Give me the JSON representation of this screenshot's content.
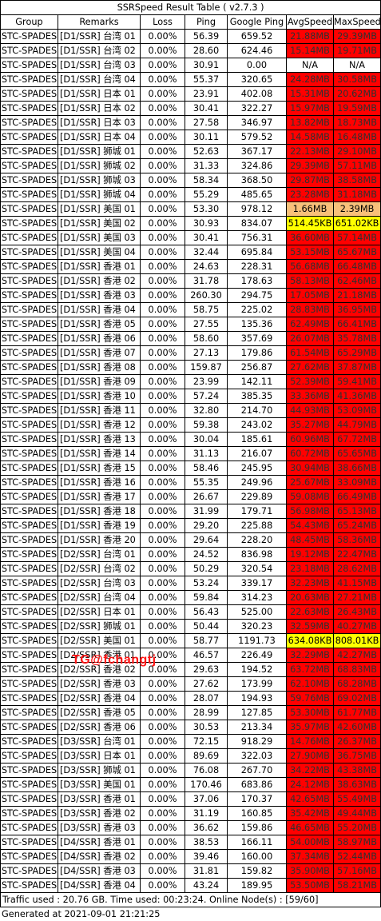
{
  "title": "SSRSpeed Result Table ( v2.7.3 )",
  "headers": [
    "Group",
    "Remarks",
    "Loss",
    "Ping",
    "Google Ping",
    "AvgSpeed",
    "MaxSpeed"
  ],
  "colors": {
    "red": "#ff0000",
    "orange": "#f8c07a",
    "yellow": "#ffff00",
    "watermark": "#ff1414"
  },
  "rows": [
    [
      "STC-SPADES",
      "[D1/SSR] 台湾 01",
      "0.00%",
      "56.39",
      "659.52",
      "21.88MB",
      "29.39MB",
      "red",
      "red"
    ],
    [
      "STC-SPADES",
      "[D1/SSR] 台湾 02",
      "0.00%",
      "28.60",
      "624.46",
      "15.14MB",
      "19.71MB",
      "red",
      "red"
    ],
    [
      "STC-SPADES",
      "[D1/SSR] 台湾 03",
      "0.00%",
      "30.91",
      "0.00",
      "N/A",
      "N/A",
      "white",
      "white"
    ],
    [
      "STC-SPADES",
      "[D1/SSR] 台湾 04",
      "0.00%",
      "55.37",
      "320.65",
      "24.28MB",
      "30.58MB",
      "red",
      "red"
    ],
    [
      "STC-SPADES",
      "[D1/SSR] 日本 01",
      "0.00%",
      "23.91",
      "402.08",
      "15.31MB",
      "20.62MB",
      "red",
      "red"
    ],
    [
      "STC-SPADES",
      "[D1/SSR] 日本 02",
      "0.00%",
      "30.41",
      "322.27",
      "15.97MB",
      "19.59MB",
      "red",
      "red"
    ],
    [
      "STC-SPADES",
      "[D1/SSR] 日本 03",
      "0.00%",
      "27.58",
      "346.97",
      "13.82MB",
      "18.73MB",
      "red",
      "red"
    ],
    [
      "STC-SPADES",
      "[D1/SSR] 日本 04",
      "0.00%",
      "30.11",
      "579.52",
      "14.58MB",
      "16.48MB",
      "red",
      "red"
    ],
    [
      "STC-SPADES",
      "[D1/SSR] 狮城 01",
      "0.00%",
      "52.63",
      "367.17",
      "22.13MB",
      "29.10MB",
      "red",
      "red"
    ],
    [
      "STC-SPADES",
      "[D1/SSR] 狮城 02",
      "0.00%",
      "31.33",
      "324.86",
      "29.39MB",
      "57.11MB",
      "red",
      "red"
    ],
    [
      "STC-SPADES",
      "[D1/SSR] 狮城 03",
      "0.00%",
      "58.34",
      "368.50",
      "29.87MB",
      "38.58MB",
      "red",
      "red"
    ],
    [
      "STC-SPADES",
      "[D1/SSR] 狮城 04",
      "0.00%",
      "55.29",
      "485.65",
      "23.28MB",
      "31.18MB",
      "red",
      "red"
    ],
    [
      "STC-SPADES",
      "[D1/SSR] 美国 01",
      "0.00%",
      "53.30",
      "978.12",
      "1.66MB",
      "2.39MB",
      "orange",
      "orange"
    ],
    [
      "STC-SPADES",
      "[D1/SSR] 美国 02",
      "0.00%",
      "30.93",
      "834.07",
      "514.45KB",
      "651.02KB",
      "yellow",
      "yellow"
    ],
    [
      "STC-SPADES",
      "[D1/SSR] 美国 03",
      "0.00%",
      "30.41",
      "756.31",
      "36.60MB",
      "57.14MB",
      "red",
      "red"
    ],
    [
      "STC-SPADES",
      "[D1/SSR] 美国 04",
      "0.00%",
      "32.44",
      "695.84",
      "53.15MB",
      "65.67MB",
      "red",
      "red"
    ],
    [
      "STC-SPADES",
      "[D1/SSR] 香港 01",
      "0.00%",
      "24.63",
      "228.31",
      "56.68MB",
      "66.48MB",
      "red",
      "red"
    ],
    [
      "STC-SPADES",
      "[D1/SSR] 香港 02",
      "0.00%",
      "31.78",
      "178.63",
      "58.13MB",
      "62.46MB",
      "red",
      "red"
    ],
    [
      "STC-SPADES",
      "[D1/SSR] 香港 03",
      "0.00%",
      "260.30",
      "294.75",
      "17.05MB",
      "21.18MB",
      "red",
      "red"
    ],
    [
      "STC-SPADES",
      "[D1/SSR] 香港 04",
      "0.00%",
      "58.75",
      "225.02",
      "28.83MB",
      "36.95MB",
      "red",
      "red"
    ],
    [
      "STC-SPADES",
      "[D1/SSR] 香港 05",
      "0.00%",
      "27.55",
      "135.36",
      "62.49MB",
      "66.41MB",
      "red",
      "red"
    ],
    [
      "STC-SPADES",
      "[D1/SSR] 香港 06",
      "0.00%",
      "58.60",
      "357.69",
      "26.07MB",
      "35.78MB",
      "red",
      "red"
    ],
    [
      "STC-SPADES",
      "[D1/SSR] 香港 07",
      "0.00%",
      "27.13",
      "179.86",
      "61.54MB",
      "65.29MB",
      "red",
      "red"
    ],
    [
      "STC-SPADES",
      "[D1/SSR] 香港 08",
      "0.00%",
      "159.87",
      "256.87",
      "27.62MB",
      "37.87MB",
      "red",
      "red"
    ],
    [
      "STC-SPADES",
      "[D1/SSR] 香港 09",
      "0.00%",
      "23.99",
      "142.11",
      "52.39MB",
      "59.41MB",
      "red",
      "red"
    ],
    [
      "STC-SPADES",
      "[D1/SSR] 香港 10",
      "0.00%",
      "57.24",
      "385.35",
      "33.36MB",
      "41.36MB",
      "red",
      "red"
    ],
    [
      "STC-SPADES",
      "[D1/SSR] 香港 11",
      "0.00%",
      "32.80",
      "214.70",
      "44.93MB",
      "53.09MB",
      "red",
      "red"
    ],
    [
      "STC-SPADES",
      "[D1/SSR] 香港 12",
      "0.00%",
      "59.38",
      "243.02",
      "35.27MB",
      "44.79MB",
      "red",
      "red"
    ],
    [
      "STC-SPADES",
      "[D1/SSR] 香港 13",
      "0.00%",
      "30.04",
      "185.61",
      "60.96MB",
      "67.72MB",
      "red",
      "red"
    ],
    [
      "STC-SPADES",
      "[D1/SSR] 香港 14",
      "0.00%",
      "31.13",
      "216.07",
      "60.72MB",
      "65.65MB",
      "red",
      "red"
    ],
    [
      "STC-SPADES",
      "[D1/SSR] 香港 15",
      "0.00%",
      "58.46",
      "245.95",
      "30.94MB",
      "38.66MB",
      "red",
      "red"
    ],
    [
      "STC-SPADES",
      "[D1/SSR] 香港 16",
      "0.00%",
      "55.35",
      "249.96",
      "25.67MB",
      "33.09MB",
      "red",
      "red"
    ],
    [
      "STC-SPADES",
      "[D1/SSR] 香港 17",
      "0.00%",
      "26.67",
      "229.89",
      "59.08MB",
      "66.49MB",
      "red",
      "red"
    ],
    [
      "STC-SPADES",
      "[D1/SSR] 香港 18",
      "0.00%",
      "31.99",
      "179.71",
      "56.98MB",
      "65.13MB",
      "red",
      "red"
    ],
    [
      "STC-SPADES",
      "[D1/SSR] 香港 19",
      "0.00%",
      "29.20",
      "225.88",
      "54.43MB",
      "65.24MB",
      "red",
      "red"
    ],
    [
      "STC-SPADES",
      "[D1/SSR] 香港 20",
      "0.00%",
      "29.64",
      "228.20",
      "48.45MB",
      "58.36MB",
      "red",
      "red"
    ],
    [
      "STC-SPADES",
      "[D2/SSR] 台湾 01",
      "0.00%",
      "24.52",
      "836.98",
      "19.12MB",
      "22.47MB",
      "red",
      "red"
    ],
    [
      "STC-SPADES",
      "[D2/SSR] 台湾 02",
      "0.00%",
      "50.29",
      "320.54",
      "23.18MB",
      "28.62MB",
      "red",
      "red"
    ],
    [
      "STC-SPADES",
      "[D2/SSR] 台湾 03",
      "0.00%",
      "53.24",
      "339.17",
      "32.23MB",
      "41.15MB",
      "red",
      "red"
    ],
    [
      "STC-SPADES",
      "[D2/SSR] 台湾 04",
      "0.00%",
      "59.84",
      "314.23",
      "20.63MB",
      "27.21MB",
      "red",
      "red"
    ],
    [
      "STC-SPADES",
      "[D2/SSR] 日本 01",
      "0.00%",
      "56.43",
      "525.00",
      "22.63MB",
      "26.43MB",
      "red",
      "red"
    ],
    [
      "STC-SPADES",
      "[D2/SSR] 狮城 01",
      "0.00%",
      "50.44",
      "320.23",
      "32.59MB",
      "40.27MB",
      "red",
      "red"
    ],
    [
      "STC-SPADES",
      "[D2/SSR] 美国 01",
      "0.00%",
      "58.77",
      "1191.73",
      "634.08KB",
      "808.01KB",
      "yellow",
      "yellow"
    ],
    [
      "STC-SPADES",
      "[D2/SSR] 香港 01",
      "0.00%",
      "46.57",
      "226.49",
      "32.29MB",
      "42.27MB",
      "red",
      "red"
    ],
    [
      "STC-SPADES",
      "[D2/SSR] 香港 02",
      "0.00%",
      "29.63",
      "194.52",
      "63.72MB",
      "68.83MB",
      "red",
      "red"
    ],
    [
      "STC-SPADES",
      "[D2/SSR] 香港 03",
      "0.00%",
      "27.62",
      "173.99",
      "62.10MB",
      "68.28MB",
      "red",
      "red"
    ],
    [
      "STC-SPADES",
      "[D2/SSR] 香港 04",
      "0.00%",
      "28.07",
      "194.93",
      "59.76MB",
      "69.02MB",
      "red",
      "red"
    ],
    [
      "STC-SPADES",
      "[D2/SSR] 香港 05",
      "0.00%",
      "28.99",
      "127.85",
      "53.30MB",
      "61.77MB",
      "red",
      "red"
    ],
    [
      "STC-SPADES",
      "[D2/SSR] 香港 06",
      "0.00%",
      "30.53",
      "213.34",
      "35.97MB",
      "42.60MB",
      "red",
      "red"
    ],
    [
      "STC-SPADES",
      "[D3/SSR] 台湾 01",
      "0.00%",
      "72.15",
      "918.29",
      "14.76MB",
      "26.37MB",
      "red",
      "red"
    ],
    [
      "STC-SPADES",
      "[D3/SSR] 日本 01",
      "0.00%",
      "89.69",
      "322.03",
      "27.90MB",
      "36.75MB",
      "red",
      "red"
    ],
    [
      "STC-SPADES",
      "[D3/SSR] 狮城 01",
      "0.00%",
      "76.08",
      "267.70",
      "34.22MB",
      "43.38MB",
      "red",
      "red"
    ],
    [
      "STC-SPADES",
      "[D3/SSR] 美国 01",
      "0.00%",
      "170.46",
      "683.86",
      "24.12MB",
      "38.63MB",
      "red",
      "red"
    ],
    [
      "STC-SPADES",
      "[D3/SSR] 香港 01",
      "0.00%",
      "37.06",
      "170.37",
      "42.65MB",
      "55.49MB",
      "red",
      "red"
    ],
    [
      "STC-SPADES",
      "[D3/SSR] 香港 02",
      "0.00%",
      "31.19",
      "160.85",
      "35.42MB",
      "49.44MB",
      "red",
      "red"
    ],
    [
      "STC-SPADES",
      "[D3/SSR] 香港 03",
      "0.00%",
      "36.62",
      "159.86",
      "46.65MB",
      "55.20MB",
      "red",
      "red"
    ],
    [
      "STC-SPADES",
      "[D4/SSR] 香港 01",
      "0.00%",
      "38.53",
      "166.11",
      "54.00MB",
      "58.97MB",
      "red",
      "red"
    ],
    [
      "STC-SPADES",
      "[D4/SSR] 香港 02",
      "0.00%",
      "39.46",
      "160.00",
      "37.34MB",
      "52.44MB",
      "red",
      "red"
    ],
    [
      "STC-SPADES",
      "[D4/SSR] 香港 03",
      "0.00%",
      "31.81",
      "159.82",
      "35.90MB",
      "57.16MB",
      "red",
      "red"
    ],
    [
      "STC-SPADES",
      "[D4/SSR] 香港 04",
      "0.00%",
      "43.24",
      "189.95",
      "53.50MB",
      "58.21MB",
      "red",
      "red"
    ]
  ],
  "footer": {
    "traffic": "Traffic used : 20.76 GB. Time used: 00:23:24. Online Node(s) : [59/60]",
    "generated": "Generated at 2021-09-01 21:21:25"
  },
  "watermark": "TG@fchangtj"
}
